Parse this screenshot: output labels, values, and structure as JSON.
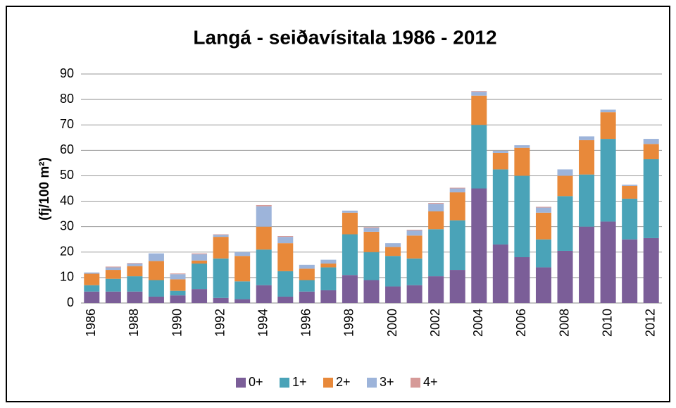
{
  "chart_data": {
    "type": "bar",
    "stacked": true,
    "title": "Langá - seiðavísitala 1986 - 2012",
    "y_label": "(fj/100 m²)",
    "categories": [
      "1986",
      null,
      "1988",
      null,
      "1990",
      null,
      "1992",
      null,
      "1994",
      null,
      "1996",
      null,
      "1998",
      null,
      "2000",
      null,
      "2002",
      null,
      "2004",
      null,
      "2006",
      null,
      "2008",
      null,
      "2010",
      null,
      "2012"
    ],
    "series": [
      {
        "name": "0+",
        "color": "#7b5e98",
        "values": [
          4.5,
          4.5,
          4.5,
          2.5,
          3,
          5.5,
          2,
          1.5,
          7,
          2.5,
          4.5,
          5,
          11,
          9,
          6.5,
          7,
          10.5,
          13,
          45,
          23,
          18,
          14,
          20.5,
          30,
          32,
          25,
          25.5
        ]
      },
      {
        "name": "1+",
        "color": "#4aa3b8",
        "values": [
          2.5,
          5,
          6,
          6.5,
          1.8,
          10,
          15.5,
          7,
          14,
          10,
          4.5,
          9,
          16,
          11,
          12,
          10.5,
          18.5,
          19.5,
          25,
          29.5,
          32,
          11,
          21.5,
          20.5,
          32.5,
          16,
          31
        ]
      },
      {
        "name": "2+",
        "color": "#e8893a",
        "values": [
          4.5,
          3.5,
          4,
          7.5,
          4.5,
          1.2,
          8.5,
          10,
          9,
          11,
          4.5,
          1.5,
          8.5,
          8,
          3.5,
          9,
          7,
          11,
          11.5,
          6.5,
          11,
          10.5,
          8,
          13.5,
          10.5,
          5,
          6
        ]
      },
      {
        "name": "3+",
        "color": "#9db4da",
        "values": [
          0.5,
          1,
          1,
          3,
          2,
          2.5,
          0.8,
          1.5,
          8,
          2.5,
          1.5,
          1.5,
          0.8,
          1.5,
          1.5,
          2,
          3,
          1.5,
          1.5,
          0.8,
          1,
          2,
          2.5,
          1.5,
          1,
          0.5,
          2
        ]
      },
      {
        "name": "4+",
        "color": "#d69a98",
        "values": [
          0,
          0.3,
          0.2,
          0,
          0.3,
          0.3,
          0.2,
          0,
          0.5,
          0.3,
          0,
          0,
          0,
          0.3,
          0,
          0.3,
          0.3,
          0.3,
          0.3,
          0,
          0,
          0.3,
          0,
          0,
          0,
          0,
          0
        ]
      }
    ],
    "ylim": [
      0,
      90
    ],
    "yticks": [
      0,
      10,
      20,
      30,
      40,
      50,
      60,
      70,
      80,
      90
    ],
    "grid": true,
    "legend": "bottom"
  }
}
